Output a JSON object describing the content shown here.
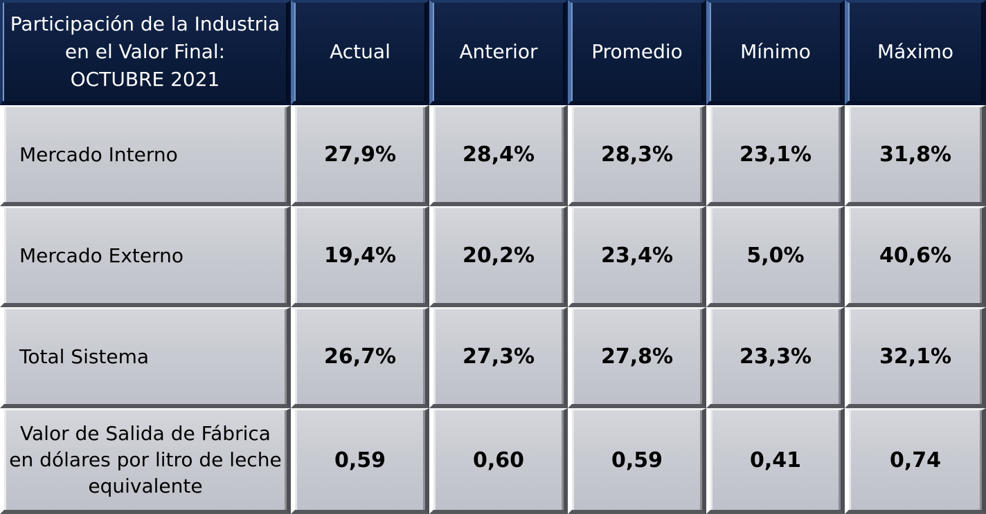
{
  "table": {
    "header": {
      "title": "Participación de la Industria\nen el Valor Final:\nOCTUBRE 2021",
      "columns": [
        "Actual",
        "Anterior",
        "Promedio",
        "Mínimo",
        "Máximo"
      ]
    },
    "rows": [
      {
        "label": "Mercado Interno",
        "values": [
          "27,9%",
          "28,4%",
          "28,3%",
          "23,1%",
          "31,8%"
        ]
      },
      {
        "label": "Mercado Externo",
        "values": [
          "19,4%",
          "20,2%",
          "23,4%",
          "5,0%",
          "40,6%"
        ]
      },
      {
        "label": "Total Sistema",
        "values": [
          "26,7%",
          "27,3%",
          "27,8%",
          "23,3%",
          "32,1%"
        ]
      },
      {
        "label": "Valor de Salida de Fábrica\nen dólares por litro de leche\nequivalente",
        "values": [
          "0,59",
          "0,60",
          "0,59",
          "0,41",
          "0,74"
        ]
      }
    ]
  }
}
